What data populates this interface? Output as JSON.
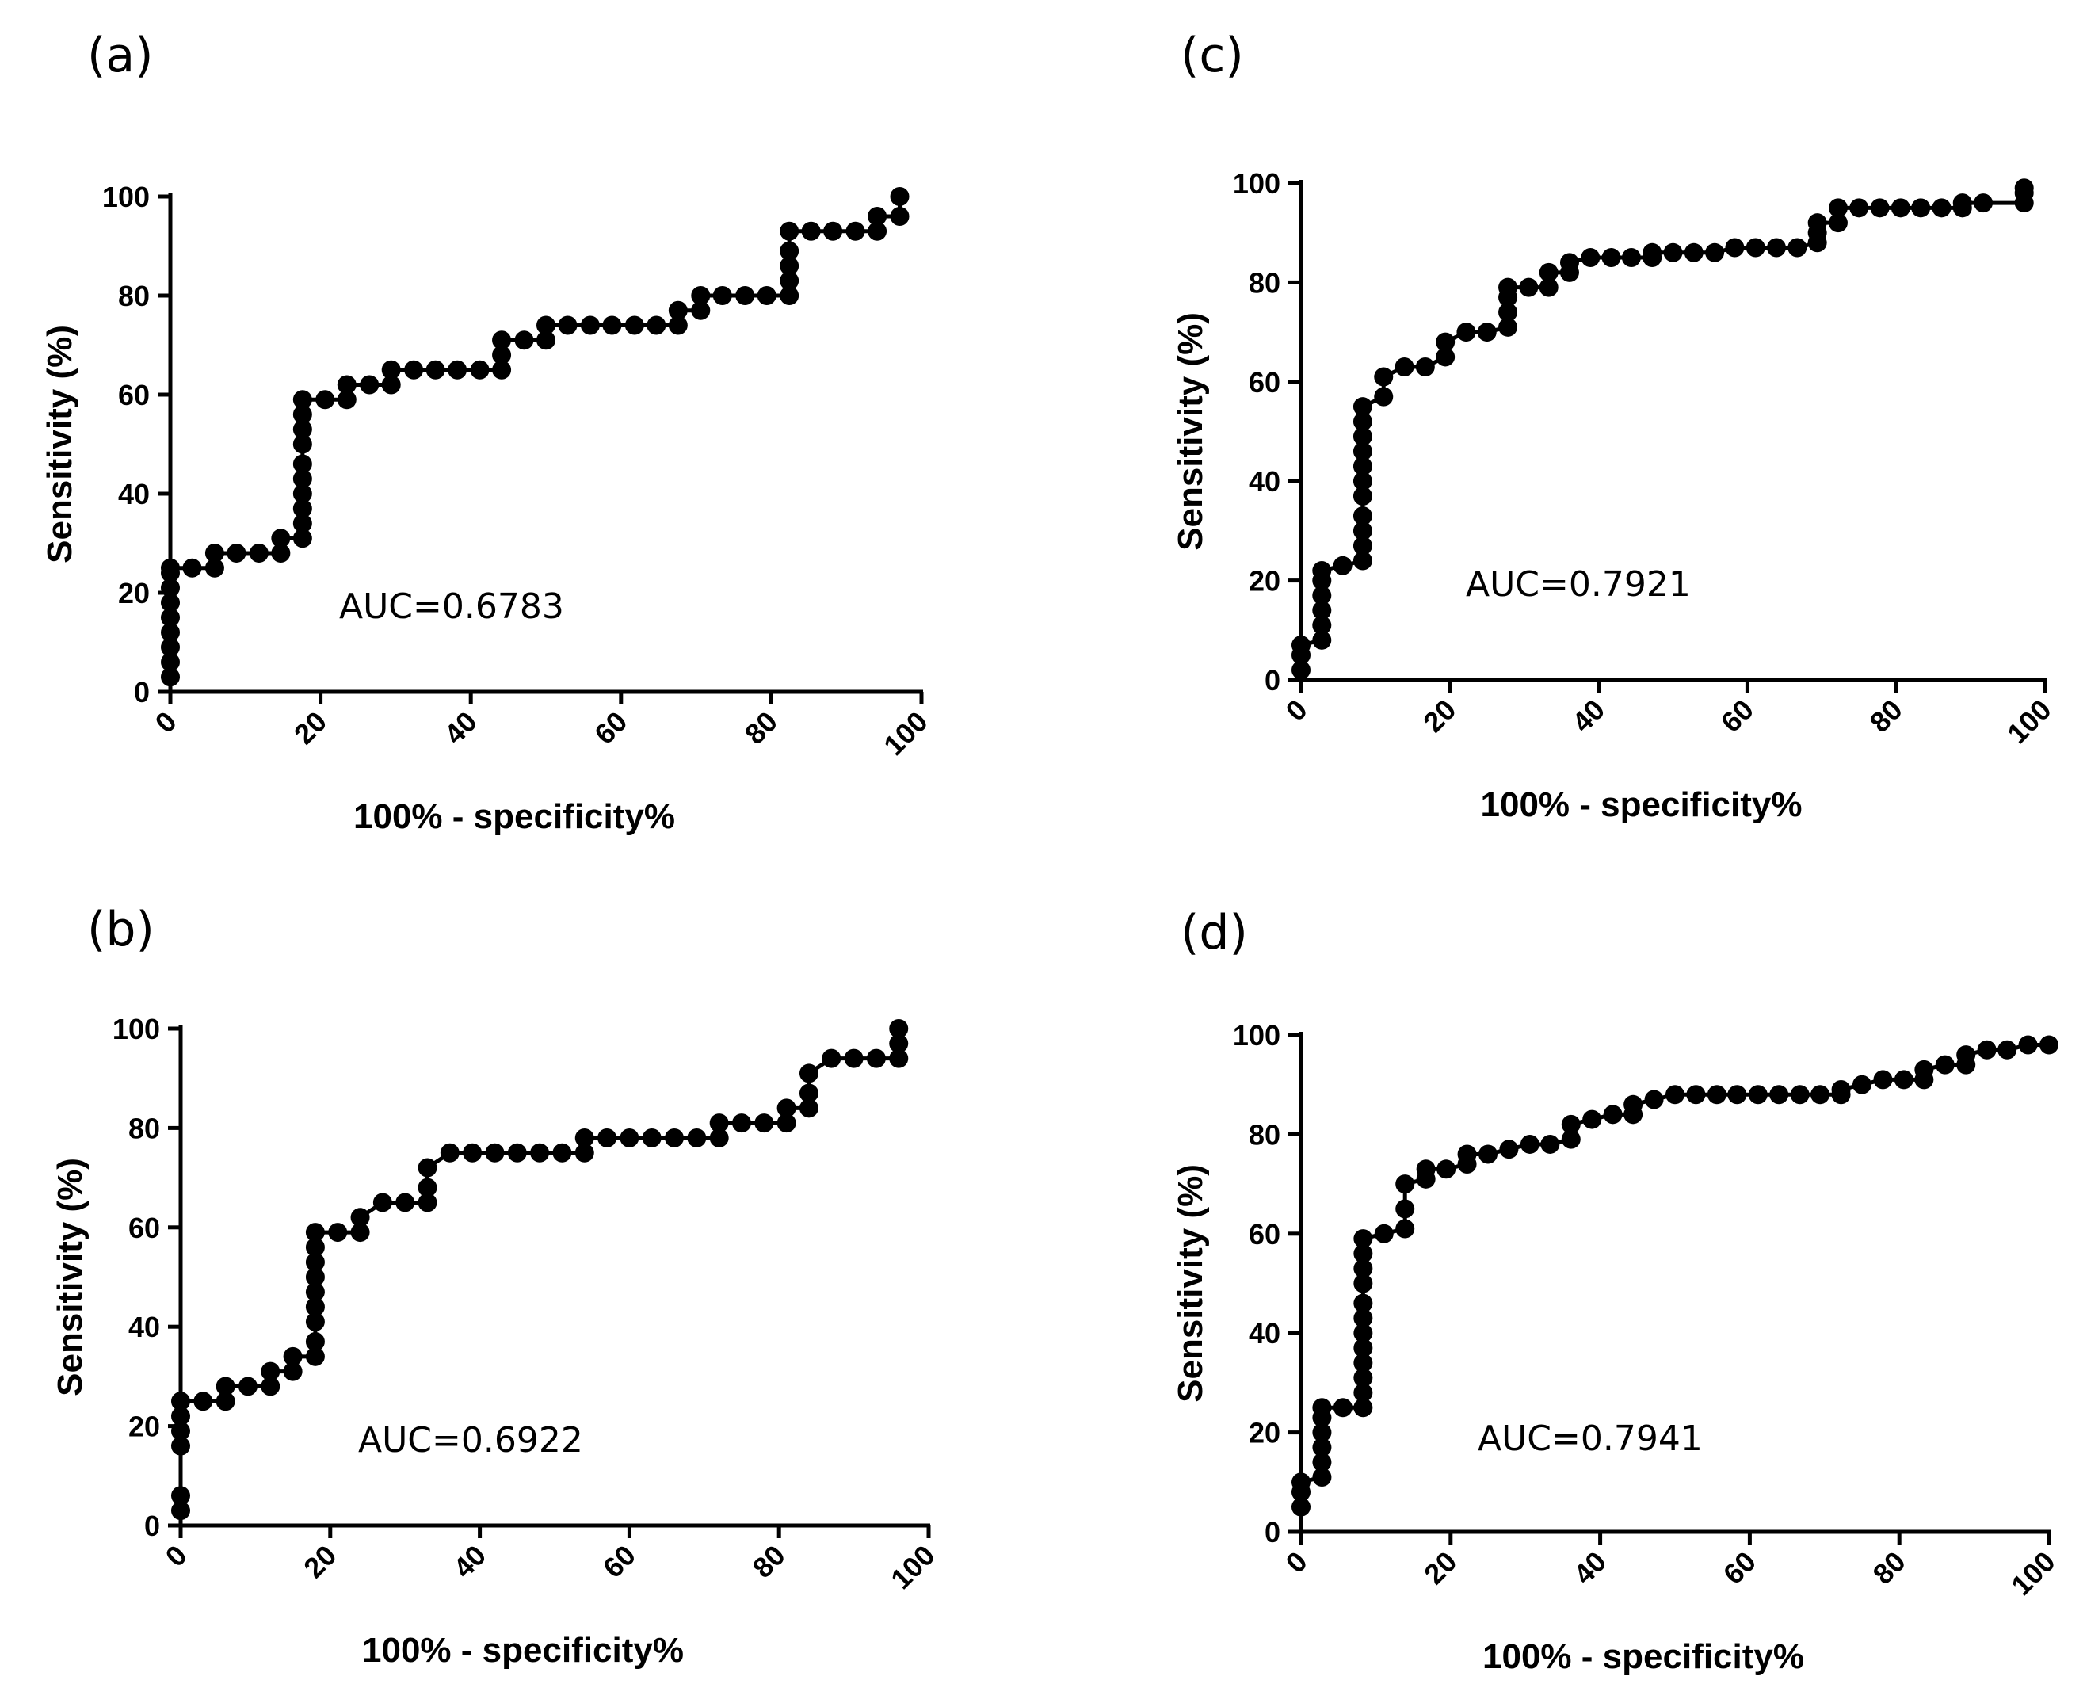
{
  "chart_data": [
    {
      "type": "line",
      "panel_label": "(a)",
      "xlabel": "100%  - specificity%",
      "ylabel": "Sensitivity (%)",
      "xlim": [
        0,
        100
      ],
      "ylim": [
        0,
        100
      ],
      "x_ticks": [
        "0",
        "20",
        "40",
        "60",
        "80",
        "100"
      ],
      "y_ticks": [
        "0",
        "20",
        "40",
        "60",
        "80",
        "100"
      ],
      "annotation": "AUC=0.6783",
      "x": [
        0,
        0,
        0,
        0,
        0,
        0,
        0,
        0,
        0,
        2.9,
        5.9,
        5.9,
        8.8,
        11.8,
        14.7,
        14.7,
        17.6,
        17.6,
        17.6,
        17.6,
        17.6,
        17.6,
        17.6,
        17.6,
        17.6,
        17.6,
        20.6,
        23.5,
        23.5,
        26.5,
        29.4,
        29.4,
        32.4,
        35.3,
        38.2,
        41.2,
        44.1,
        44.1,
        44.1,
        47.1,
        50,
        50,
        52.9,
        55.9,
        58.8,
        61.8,
        64.7,
        67.6,
        67.6,
        70.6,
        70.6,
        73.5,
        76.5,
        79.4,
        82.4,
        82.4,
        82.4,
        82.4,
        82.4,
        85.3,
        88.2,
        91.2,
        94.1,
        94.1,
        97.1,
        97.1
      ],
      "y": [
        3,
        6,
        9,
        12,
        15,
        18,
        21,
        24,
        25,
        25,
        25,
        28,
        28,
        28,
        28,
        31,
        31,
        34,
        37,
        40,
        43,
        46,
        50,
        53,
        56,
        59,
        59,
        59,
        62,
        62,
        62,
        65,
        65,
        65,
        65,
        65,
        65,
        68,
        71,
        71,
        71,
        74,
        74,
        74,
        74,
        74,
        74,
        74,
        77,
        77,
        80,
        80,
        80,
        80,
        80,
        83,
        86,
        89,
        93,
        93,
        93,
        93,
        93,
        96,
        96,
        100
      ]
    },
    {
      "type": "line",
      "panel_label": "(b)",
      "xlabel": "100%  - specificity%",
      "ylabel": "Sensitivity (%)",
      "xlim": [
        0,
        100
      ],
      "ylim": [
        0,
        100
      ],
      "x_ticks": [
        "0",
        "20",
        "40",
        "60",
        "80",
        "100"
      ],
      "y_ticks": [
        "0",
        "20",
        "40",
        "60",
        "80",
        "100"
      ],
      "annotation": "AUC=0.6922",
      "x": [
        0,
        0,
        0,
        0,
        0,
        0,
        3,
        6,
        6,
        9,
        12,
        12,
        15,
        15,
        18,
        18,
        18,
        18,
        18,
        18,
        18,
        18,
        18,
        21,
        24,
        24,
        27,
        30,
        33,
        33,
        33,
        36,
        39,
        42,
        45,
        48,
        51,
        54,
        54,
        57,
        60,
        63,
        66,
        69,
        72,
        72,
        75,
        78,
        81,
        81,
        84,
        84,
        84,
        87,
        90,
        93,
        96,
        96,
        96
      ],
      "y": [
        3,
        6,
        16,
        19,
        22,
        25,
        25,
        25,
        28,
        28,
        28,
        31,
        31,
        34,
        34,
        37,
        41,
        44,
        47,
        50,
        53,
        56,
        59,
        59,
        59,
        62,
        65,
        65,
        65,
        68,
        72,
        75,
        75,
        75,
        75,
        75,
        75,
        75,
        78,
        78,
        78,
        78,
        78,
        78,
        78,
        81,
        81,
        81,
        81,
        84,
        84,
        87,
        91,
        94,
        94,
        94,
        94,
        97,
        100
      ]
    },
    {
      "type": "line",
      "panel_label": "(c)",
      "xlabel": "100%  - specificity%",
      "ylabel": "Sensitivity (%)",
      "xlim": [
        0,
        100
      ],
      "ylim": [
        0,
        100
      ],
      "x_ticks": [
        "0",
        "20",
        "40",
        "60",
        "80",
        "100"
      ],
      "y_ticks": [
        "0",
        "20",
        "40",
        "60",
        "80",
        "100"
      ],
      "annotation": "AUC=0.7921",
      "x": [
        0,
        0,
        0,
        2.8,
        2.8,
        2.8,
        2.8,
        2.8,
        2.8,
        5.6,
        8.3,
        8.3,
        8.3,
        8.3,
        8.3,
        8.3,
        8.3,
        8.3,
        8.3,
        8.3,
        8.3,
        11.1,
        11.1,
        13.9,
        16.7,
        19.4,
        19.4,
        22.2,
        25,
        27.8,
        27.8,
        27.8,
        27.8,
        30.6,
        33.3,
        33.3,
        36.1,
        36.1,
        38.9,
        41.7,
        44.4,
        47.2,
        47.2,
        50,
        52.8,
        55.6,
        58.3,
        61.1,
        63.9,
        66.7,
        69.4,
        69.4,
        69.4,
        72.2,
        72.2,
        75,
        77.8,
        80.6,
        83.3,
        86.1,
        88.9,
        88.9,
        91.7,
        97.2,
        97.2,
        97.2
      ],
      "y": [
        2,
        5,
        7,
        8,
        11,
        14,
        17,
        20,
        22,
        23,
        24,
        27,
        30,
        33,
        37,
        40,
        43,
        46,
        49,
        52,
        55,
        57,
        61,
        63,
        63,
        65,
        68,
        70,
        70,
        71,
        74,
        77,
        79,
        79,
        79,
        82,
        82,
        84,
        85,
        85,
        85,
        85,
        86,
        86,
        86,
        86,
        87,
        87,
        87,
        87,
        88,
        90,
        92,
        92,
        95,
        95,
        95,
        95,
        95,
        95,
        95,
        96,
        96,
        96,
        98,
        99
      ]
    },
    {
      "type": "line",
      "panel_label": "(d)",
      "xlabel": "100%  - specificity%",
      "ylabel": "Sensitivity (%)",
      "xlim": [
        0,
        100
      ],
      "ylim": [
        0,
        100
      ],
      "x_ticks": [
        "0",
        "20",
        "40",
        "60",
        "80",
        "100"
      ],
      "y_ticks": [
        "0",
        "20",
        "40",
        "60",
        "80",
        "100"
      ],
      "annotation": "AUC=0.7941",
      "x": [
        0,
        0,
        0,
        2.8,
        2.8,
        2.8,
        2.8,
        2.8,
        2.8,
        5.6,
        8.3,
        8.3,
        8.3,
        8.3,
        8.3,
        8.3,
        8.3,
        8.3,
        8.3,
        8.3,
        8.3,
        8.3,
        11.1,
        13.9,
        13.9,
        13.9,
        16.7,
        16.7,
        19.4,
        22.2,
        22.2,
        25,
        27.8,
        30.6,
        33.3,
        36.1,
        36.1,
        38.9,
        41.7,
        44.4,
        44.4,
        47.2,
        50,
        52.8,
        55.6,
        58.3,
        61.1,
        63.9,
        66.7,
        69.4,
        72.2,
        72.2,
        75,
        77.8,
        80.6,
        83.3,
        83.3,
        86.1,
        88.9,
        88.9,
        91.7,
        94.4,
        97.2,
        100
      ],
      "y": [
        5,
        8,
        10,
        11,
        14,
        17,
        20,
        23,
        25,
        25,
        25,
        28,
        31,
        34,
        37,
        40,
        43,
        46,
        50,
        53,
        56,
        59,
        60,
        61,
        65,
        70,
        71,
        73,
        73,
        74,
        76,
        76,
        77,
        78,
        78,
        79,
        82,
        83,
        84,
        84,
        86,
        87,
        88,
        88,
        88,
        88,
        88,
        88,
        88,
        88,
        88,
        89,
        90,
        91,
        91,
        91,
        93,
        94,
        94,
        96,
        97,
        97,
        98,
        98
      ]
    }
  ]
}
